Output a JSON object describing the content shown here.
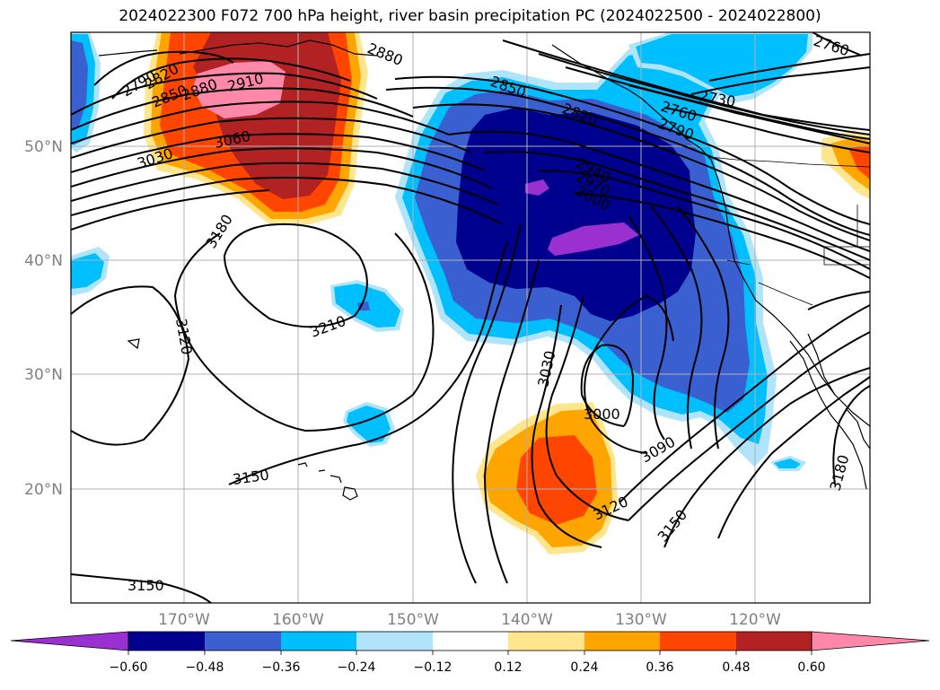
{
  "title": "2024022300 F072 700 hPa height, river basin precipitation PC (2024022500 - 2024022800)",
  "lat_labels": [
    "50°N",
    "40°N",
    "30°N",
    "20°N"
  ],
  "lon_labels": [
    "170°W",
    "160°W",
    "150°W",
    "140°W",
    "130°W",
    "120°W"
  ],
  "contour_labels": [
    "2790",
    "2820",
    "2850",
    "2880",
    "2910",
    "3030",
    "3060",
    "3180",
    "3210",
    "3120",
    "3150",
    "3150",
    "2880",
    "2850",
    "2820",
    "2940",
    "2970",
    "3000",
    "2760",
    "2730",
    "2790",
    "2760",
    "3030",
    "3000",
    "3090",
    "3120",
    "3150",
    "3180"
  ],
  "colorbar": {
    "tick_labels": [
      "−0.60",
      "−0.48",
      "−0.36",
      "−0.24",
      "−0.12",
      "0.12",
      "0.24",
      "0.36",
      "0.48",
      "0.60"
    ],
    "colors": [
      "#9b30d0",
      "#00008f",
      "#3a5fd0",
      "#00bfff",
      "#b0e4fa",
      "#ffffff",
      "#ffe68c",
      "#ffa500",
      "#ff4500",
      "#b22222",
      "#ff88aa",
      "#ff88aa"
    ]
  },
  "palette": {
    "purple": "#9b30d0",
    "navy": "#00008f",
    "blue": "#3a5fd0",
    "cyan": "#00bfff",
    "light_cyan": "#b0e4fa",
    "yellow": "#ffe68c",
    "orange": "#ffa500",
    "orange_red": "#ff4500",
    "firebrick": "#b22222",
    "pink": "#ff88aa"
  }
}
